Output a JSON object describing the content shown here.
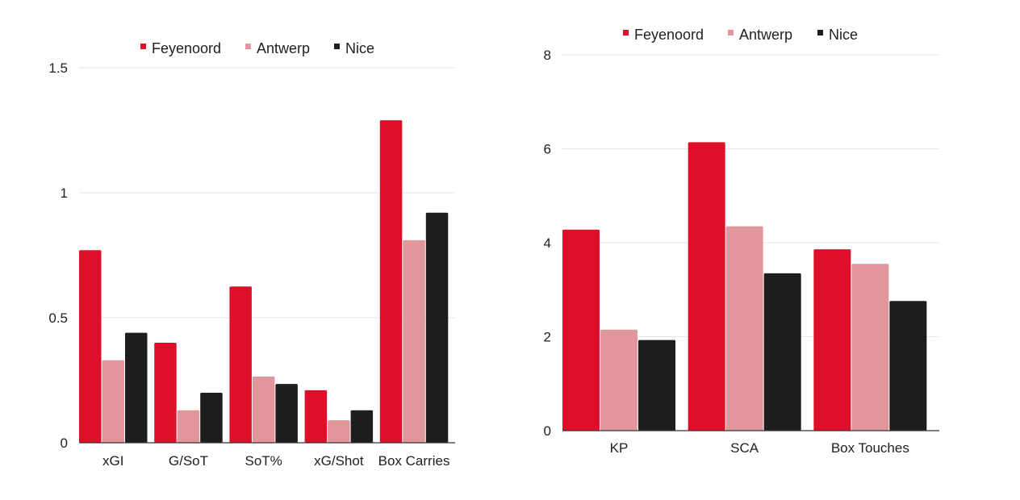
{
  "colors": {
    "Feyenoord": "#de1029",
    "Antwerp": "#e0969a",
    "Nice": "#1d1c1f"
  },
  "chart_data": [
    {
      "type": "bar",
      "categories": [
        "xGI",
        "G/SoT",
        "SoT%",
        "xG/Shot",
        "Box Carries"
      ],
      "series": [
        {
          "name": "Feyenoord",
          "values": [
            0.77,
            0.4,
            0.625,
            0.21,
            1.29
          ]
        },
        {
          "name": "Antwerp",
          "values": [
            0.33,
            0.13,
            0.265,
            0.09,
            0.81
          ]
        },
        {
          "name": "Nice",
          "values": [
            0.44,
            0.2,
            0.235,
            0.13,
            0.92
          ]
        }
      ],
      "ylim": [
        0,
        1.5
      ],
      "yticks": [
        0,
        0.5,
        1,
        1.5
      ],
      "ytick_labels": [
        "0",
        "0.5",
        "1",
        "1.5"
      ],
      "grid": true,
      "legend": "top"
    },
    {
      "type": "bar",
      "categories": [
        "KP",
        "SCA",
        "Box Touches"
      ],
      "series": [
        {
          "name": "Feyenoord",
          "values": [
            4.28,
            6.14,
            3.86
          ]
        },
        {
          "name": "Antwerp",
          "values": [
            2.15,
            4.35,
            3.55
          ]
        },
        {
          "name": "Nice",
          "values": [
            1.93,
            3.35,
            2.76
          ]
        }
      ],
      "ylim": [
        0,
        8
      ],
      "yticks": [
        0,
        2,
        4,
        6,
        8
      ],
      "ytick_labels": [
        "0",
        "2",
        "4",
        "6",
        "8"
      ],
      "grid": true,
      "legend": "top"
    }
  ]
}
